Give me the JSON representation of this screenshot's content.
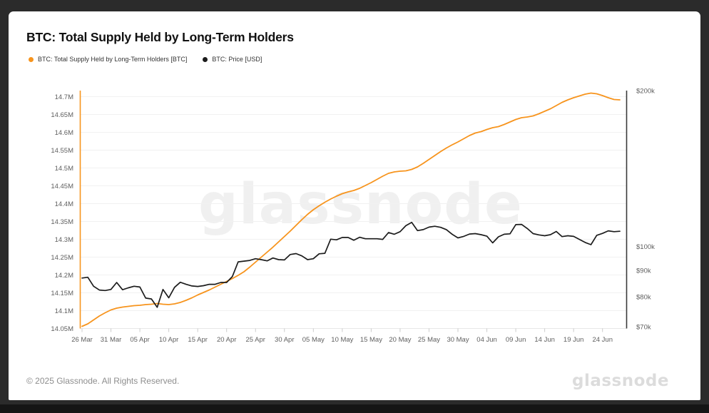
{
  "header": {
    "title": "BTC: Total Supply Held by Long-Term Holders"
  },
  "legend": {
    "items": [
      {
        "label": "BTC: Total Supply Held by Long-Term Holders [BTC]",
        "color": "#f7941d"
      },
      {
        "label": "BTC: Price [USD]",
        "color": "#1c1c1c"
      }
    ]
  },
  "watermark": {
    "text": "glassnode"
  },
  "footer": {
    "copyright": "© 2025 Glassnode. All Rights Reserved.",
    "logo": "glassnode"
  },
  "colors": {
    "frame": "#2b2b2b",
    "card": "#ffffff",
    "accent_orange": "#f7941d",
    "series_black": "#1c1c1c",
    "grid": "#f1f1f1",
    "axis_text": "#5f5f5f"
  },
  "chart_data": {
    "type": "line",
    "title": "BTC: Total Supply Held by Long-Term Holders",
    "grid": "horizontal",
    "legend_position": "top-left",
    "x_unit": "daily, 26 Mar 2025 - 27 Jun 2025",
    "x_tick_labels": [
      "26 Mar",
      "31 Mar",
      "05 Apr",
      "10 Apr",
      "15 Apr",
      "20 Apr",
      "25 Apr",
      "30 Apr",
      "05 May",
      "10 May",
      "15 May",
      "20 May",
      "25 May",
      "30 May",
      "04 Jun",
      "09 Jun",
      "14 Jun",
      "19 Jun",
      "24 Jun"
    ],
    "x_tick_positions": [
      0,
      5,
      10,
      15,
      20,
      25,
      30,
      35,
      40,
      45,
      50,
      55,
      60,
      65,
      70,
      75,
      80,
      85,
      90
    ],
    "left_axis": {
      "title": "BTC: Total Supply Held by Long-Term Holders [BTC]",
      "scale": "linear",
      "unit": "M BTC",
      "range": [
        14.05,
        14.7
      ],
      "tick_labels": [
        "14.7M",
        "14.65M",
        "14.6M",
        "14.55M",
        "14.5M",
        "14.45M",
        "14.4M",
        "14.35M",
        "14.3M",
        "14.25M",
        "14.2M",
        "14.15M",
        "14.1M",
        "14.05M"
      ],
      "tick_values": [
        14.7,
        14.65,
        14.6,
        14.55,
        14.5,
        14.45,
        14.4,
        14.35,
        14.3,
        14.25,
        14.2,
        14.15,
        14.1,
        14.05
      ]
    },
    "right_axis": {
      "title": "BTC: Price [USD]",
      "scale": "log",
      "unit": "USD (thousands)",
      "range": [
        70,
        200
      ],
      "tick_labels": [
        "$200k",
        "$100k",
        "$90k",
        "$80k",
        "$70k"
      ],
      "tick_values": [
        200,
        100,
        90,
        80,
        70
      ]
    },
    "series": [
      {
        "name": "BTC: Total Supply Held by Long-Term Holders [BTC]",
        "color": "#f7941d",
        "axis": "left",
        "values": [
          14.056,
          14.063,
          14.074,
          14.085,
          14.094,
          14.102,
          14.107,
          14.11,
          14.112,
          14.114,
          14.115,
          14.117,
          14.118,
          14.12,
          14.118,
          14.117,
          14.119,
          14.123,
          14.129,
          14.136,
          14.144,
          14.151,
          14.158,
          14.166,
          14.174,
          14.182,
          14.19,
          14.199,
          14.209,
          14.222,
          14.236,
          14.25,
          14.264,
          14.278,
          14.293,
          14.308,
          14.323,
          14.339,
          14.355,
          14.37,
          14.383,
          14.394,
          14.404,
          14.413,
          14.421,
          14.428,
          14.433,
          14.437,
          14.443,
          14.451,
          14.459,
          14.468,
          14.477,
          14.485,
          14.489,
          14.491,
          14.492,
          14.496,
          14.503,
          14.513,
          14.524,
          14.535,
          14.546,
          14.556,
          14.565,
          14.573,
          14.582,
          14.591,
          14.598,
          14.602,
          14.608,
          14.613,
          14.616,
          14.622,
          14.629,
          14.636,
          14.641,
          14.643,
          14.646,
          14.652,
          14.659,
          14.666,
          14.675,
          14.684,
          14.691,
          14.697,
          14.702,
          14.707,
          14.71,
          14.708,
          14.703,
          14.697,
          14.692,
          14.691
        ]
      },
      {
        "name": "BTC: Price [USD]",
        "color": "#1c1c1c",
        "axis": "right",
        "values": [
          86.9,
          87.2,
          83.8,
          82.4,
          82.2,
          82.6,
          85.2,
          82.5,
          83.2,
          83.8,
          83.5,
          79.5,
          79.2,
          76.3,
          82.6,
          79.6,
          83.4,
          85.3,
          84.5,
          83.9,
          83.7,
          84.0,
          84.5,
          84.5,
          85.2,
          85.2,
          87.5,
          93.4,
          93.7,
          94.0,
          94.7,
          94.3,
          93.8,
          95.0,
          94.3,
          94.2,
          96.5,
          96.9,
          95.9,
          94.3,
          94.7,
          96.8,
          97.0,
          103.3,
          103.0,
          104.1,
          104.1,
          102.8,
          104.2,
          103.5,
          103.5,
          103.5,
          103.2,
          106.4,
          105.6,
          106.8,
          109.7,
          111.3,
          107.3,
          107.8,
          109.0,
          109.4,
          108.9,
          107.8,
          105.6,
          103.9,
          104.6,
          105.7,
          105.9,
          105.4,
          104.7,
          101.6,
          104.4,
          105.6,
          105.8,
          110.2,
          110.3,
          108.3,
          105.9,
          105.3,
          104.9,
          105.4,
          106.9,
          104.5,
          104.9,
          104.6,
          103.2,
          101.8,
          100.8,
          105.1,
          106.0,
          107.2,
          106.8,
          107.0
        ]
      }
    ]
  }
}
